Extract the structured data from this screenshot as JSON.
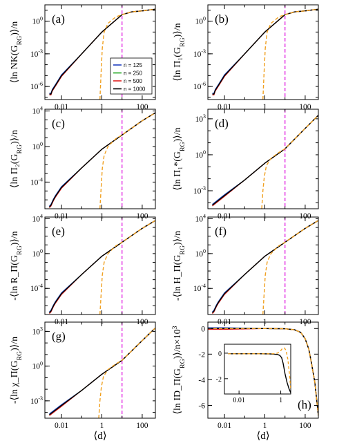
{
  "chart_data": [
    {
      "id": "a",
      "label": "(a)",
      "type": "line",
      "xscale": "log",
      "yscale": "log",
      "ylabel": "⟨ln NK(G_RG)⟩/n",
      "xlabel": "",
      "xticks": [
        "0.01",
        "1",
        "100"
      ],
      "yticks": [
        "10^0",
        "10^-3",
        "10^-6"
      ],
      "ytick_exp": [
        0,
        -3,
        -6
      ],
      "ylim_exp": [
        -7.2,
        1.5
      ],
      "xlim": [
        0.0015,
        450
      ],
      "vline_x": 10,
      "legend": {
        "placement": "center-right",
        "entries": [
          {
            "name": "n = 125",
            "color": "#1f3fbf"
          },
          {
            "name": "n = 250",
            "color": "#1aa31a"
          },
          {
            "name": "n = 500",
            "color": "#e02020"
          },
          {
            "name": "n = 1000",
            "color": "#000000"
          }
        ]
      },
      "series": [
        {
          "name": "curve",
          "x": [
            0.0025,
            0.003,
            0.0035,
            0.005,
            0.01,
            0.1,
            1,
            10,
            30,
            100,
            450
          ],
          "y_exp": [
            -6.7,
            -6.7,
            -6.35,
            -5.9,
            -5.0,
            -3.0,
            -1.0,
            0.6,
            0.85,
            0.95,
            1.1
          ]
        },
        {
          "name": "dashed",
          "x": [
            0.8,
            0.9,
            1.05,
            1.3,
            2,
            5,
            10,
            30,
            100,
            450
          ],
          "y_exp": [
            -7.2,
            -5.0,
            -2.5,
            -1.0,
            -0.2,
            0.4,
            0.6,
            0.85,
            0.95,
            1.1
          ]
        }
      ]
    },
    {
      "id": "b",
      "label": "(b)",
      "type": "line",
      "xscale": "log",
      "yscale": "log",
      "ylabel": "⟨ln Π₁(G_RG)⟩/n",
      "xlabel": "",
      "xticks": [
        "0.01",
        "1",
        "100"
      ],
      "yticks": [
        "10^0",
        "10^-3",
        "10^-6"
      ],
      "ytick_exp": [
        0,
        -3,
        -6
      ],
      "ylim_exp": [
        -7.2,
        1.5
      ],
      "xlim": [
        0.0015,
        450
      ],
      "vline_x": 10,
      "series": [
        {
          "name": "curve",
          "x": [
            0.0025,
            0.003,
            0.0035,
            0.005,
            0.01,
            0.1,
            1,
            10,
            30,
            100,
            450
          ],
          "y_exp": [
            -6.7,
            -6.7,
            -6.35,
            -5.9,
            -5.0,
            -3.0,
            -1.0,
            0.6,
            0.85,
            0.95,
            1.1
          ]
        },
        {
          "name": "dashed",
          "x": [
            0.8,
            0.9,
            1.05,
            1.3,
            2,
            5,
            10,
            30,
            100,
            450
          ],
          "y_exp": [
            -7.2,
            -5.0,
            -2.5,
            -1.0,
            -0.2,
            0.4,
            0.6,
            0.85,
            0.95,
            1.1
          ]
        }
      ]
    },
    {
      "id": "c",
      "label": "(c)",
      "type": "line",
      "xscale": "log",
      "yscale": "log",
      "ylabel": "⟨ln Π₂(G_RG)⟩/n",
      "xlabel": "",
      "xticks": [
        "0.01",
        "1",
        "100"
      ],
      "yticks": [
        "10^4",
        "10^0",
        "10^-4"
      ],
      "ytick_exp": [
        4,
        0,
        -4
      ],
      "ylim_exp": [
        -7,
        4.2
      ],
      "xlim": [
        0.0015,
        450
      ],
      "vline_x": 10,
      "series": [
        {
          "name": "curve",
          "x": [
            0.0025,
            0.003,
            0.004,
            0.005,
            0.01,
            0.1,
            1,
            10,
            100,
            450
          ],
          "y_exp": [
            -6.8,
            -6.6,
            -6.0,
            -5.6,
            -4.6,
            -2.4,
            -0.3,
            1.3,
            2.9,
            3.8
          ]
        },
        {
          "name": "dashed",
          "x": [
            0.8,
            0.9,
            1.05,
            1.3,
            2,
            5,
            10,
            100,
            450
          ],
          "y_exp": [
            -7.0,
            -5.0,
            -2.5,
            -1.0,
            0.0,
            0.9,
            1.3,
            2.9,
            3.8
          ]
        }
      ]
    },
    {
      "id": "d",
      "label": "(d)",
      "type": "line",
      "xscale": "log",
      "yscale": "log",
      "ylabel": "⟨ln Π₁*(G_RG)⟩/n",
      "xlabel": "",
      "xticks": [
        "0.01",
        "1",
        "100"
      ],
      "yticks": [
        "10^3",
        "10^0",
        "10^-3"
      ],
      "ytick_exp": [
        3,
        0,
        -3
      ],
      "ylim_exp": [
        -4.5,
        3.8
      ],
      "xlim": [
        0.0015,
        450
      ],
      "vline_x": 10,
      "series": [
        {
          "name": "curve",
          "x": [
            0.0025,
            0.01,
            0.1,
            1,
            10,
            100,
            450
          ],
          "y_exp": [
            -4.2,
            -3.4,
            -2.1,
            -0.7,
            0.5,
            2.2,
            3.3
          ]
        },
        {
          "name": "dashed",
          "x": [
            0.7,
            0.8,
            0.95,
            1.2,
            2,
            5,
            10,
            100,
            450
          ],
          "y_exp": [
            -4.5,
            -3.0,
            -1.8,
            -0.9,
            -0.3,
            0.2,
            0.5,
            2.2,
            3.3
          ]
        }
      ]
    },
    {
      "id": "e",
      "label": "(e)",
      "type": "line",
      "xscale": "log",
      "yscale": "log",
      "ylabel": "-⟨ln R_Π(G_RG)⟩/n",
      "xlabel": "",
      "xticks": [
        "0.01",
        "1",
        "100"
      ],
      "yticks": [
        "10^4",
        "10^0",
        "10^-4"
      ],
      "ytick_exp": [
        4,
        0,
        -4
      ],
      "ylim_exp": [
        -7,
        4.2
      ],
      "xlim": [
        0.0015,
        450
      ],
      "vline_x": 10,
      "series": [
        {
          "name": "curve",
          "x": [
            0.0025,
            0.003,
            0.004,
            0.005,
            0.01,
            0.1,
            1,
            10,
            100,
            450
          ],
          "y_exp": [
            -6.8,
            -6.6,
            -6.0,
            -5.6,
            -4.6,
            -2.4,
            -0.3,
            1.3,
            2.9,
            3.8
          ]
        },
        {
          "name": "dashed",
          "x": [
            0.8,
            0.9,
            1.05,
            1.3,
            2,
            5,
            10,
            100,
            450
          ],
          "y_exp": [
            -7.0,
            -5.0,
            -2.5,
            -1.0,
            0.0,
            0.9,
            1.3,
            2.9,
            3.8
          ]
        }
      ]
    },
    {
      "id": "f",
      "label": "(f)",
      "type": "line",
      "xscale": "log",
      "yscale": "log",
      "ylabel": "-⟨ln H_Π(G_RG)⟩/n",
      "xlabel": "",
      "xticks": [
        "0.01",
        "1",
        "100"
      ],
      "yticks": [
        "10^4",
        "10^0",
        "10^-4"
      ],
      "ytick_exp": [
        4,
        0,
        -4
      ],
      "ylim_exp": [
        -7,
        4.2
      ],
      "xlim": [
        0.0015,
        450
      ],
      "vline_x": 10,
      "series": [
        {
          "name": "curve",
          "x": [
            0.0025,
            0.003,
            0.004,
            0.005,
            0.01,
            0.1,
            1,
            10,
            100,
            450
          ],
          "y_exp": [
            -6.8,
            -6.6,
            -6.0,
            -5.6,
            -4.6,
            -2.4,
            -0.3,
            1.3,
            2.9,
            3.8
          ]
        },
        {
          "name": "dashed",
          "x": [
            0.8,
            0.9,
            1.05,
            1.3,
            2,
            5,
            10,
            100,
            450
          ],
          "y_exp": [
            -7.0,
            -5.0,
            -2.5,
            -1.0,
            0.0,
            0.9,
            1.3,
            2.9,
            3.8
          ]
        }
      ]
    },
    {
      "id": "g",
      "label": "(g)",
      "type": "line",
      "xscale": "log",
      "yscale": "log",
      "ylabel": "-⟨ln χ_Π(G_RG)⟩/n",
      "xlabel": "⟨d⟩",
      "xticks": [
        "0.01",
        "1",
        "100"
      ],
      "yticks": [
        "10^3",
        "10^0",
        "10^-3"
      ],
      "ytick_exp": [
        3,
        0,
        -3
      ],
      "ylim_exp": [
        -4.5,
        3.8
      ],
      "xlim": [
        0.0015,
        450
      ],
      "vline_x": 10,
      "series": [
        {
          "name": "curve",
          "x": [
            0.0025,
            0.01,
            0.1,
            1,
            10,
            100,
            450
          ],
          "y_exp": [
            -4.2,
            -3.4,
            -2.1,
            -0.7,
            0.5,
            2.2,
            3.3
          ]
        },
        {
          "name": "dashed",
          "x": [
            0.7,
            0.8,
            0.95,
            1.2,
            2,
            5,
            10,
            100,
            450
          ],
          "y_exp": [
            -4.5,
            -3.0,
            -1.8,
            -0.9,
            -0.3,
            0.2,
            0.5,
            2.2,
            3.3
          ]
        }
      ]
    },
    {
      "id": "h",
      "label": "(h)",
      "type": "line",
      "xscale": "log",
      "yscale": "linear",
      "ylabel": "⟨ln ID_Π(G_RG)⟩/n×10^3",
      "xlabel": "⟨d⟩",
      "xticks": [
        "0.01",
        "1",
        "100"
      ],
      "yticks": [
        "0",
        "-2",
        "-4",
        "-6"
      ],
      "ytick_vals": [
        0,
        -2,
        -4,
        -6
      ],
      "ylim": [
        -7,
        0.5
      ],
      "xlim": [
        0.0015,
        450
      ],
      "series": [
        {
          "name": "curve",
          "x": [
            0.0015,
            0.01,
            1,
            10,
            30,
            60,
            100,
            150,
            200,
            300,
            450
          ],
          "y": [
            0,
            0,
            0,
            -0.02,
            -0.1,
            -0.3,
            -0.8,
            -1.6,
            -2.6,
            -4.2,
            -6.8
          ]
        },
        {
          "name": "dashed",
          "x": [
            0.0015,
            0.01,
            1,
            10,
            30,
            60,
            100,
            150,
            200,
            300,
            450
          ],
          "y": [
            0,
            0,
            0,
            -0.02,
            -0.1,
            -0.3,
            -0.8,
            -1.6,
            -2.6,
            -4.2,
            -6.8
          ]
        }
      ],
      "inset": {
        "xscale": "log",
        "xticks": [
          "0.01",
          "1"
        ],
        "yticks": [
          "0",
          "-2"
        ],
        "ytick_vals": [
          0,
          -2
        ],
        "ylim": [
          -3.2,
          0.7
        ],
        "xlim": [
          0.002,
          3
        ],
        "series": [
          {
            "name": "curve",
            "x": [
              0.003,
              0.01,
              0.1,
              0.3,
              0.5,
              0.7,
              0.9,
              1.1,
              1.3,
              1.6,
              2.0,
              2.5,
              3.0
            ],
            "y": [
              -0.05,
              -0.05,
              -0.05,
              -0.06,
              -0.08,
              -0.1,
              -0.18,
              -0.35,
              -0.8,
              -1.6,
              -2.3,
              -2.8,
              -3.1
            ]
          },
          {
            "name": "dashed",
            "x": [
              0.003,
              0.01,
              0.1,
              0.3,
              0.5,
              0.7,
              1.0,
              1.2,
              1.5,
              1.8,
              2.2,
              2.6,
              3.0
            ],
            "y": [
              -0.05,
              -0.05,
              -0.05,
              -0.05,
              -0.04,
              0.0,
              0.2,
              0.38,
              0.4,
              0.2,
              -0.5,
              -1.6,
              -2.8
            ]
          }
        ]
      }
    }
  ]
}
